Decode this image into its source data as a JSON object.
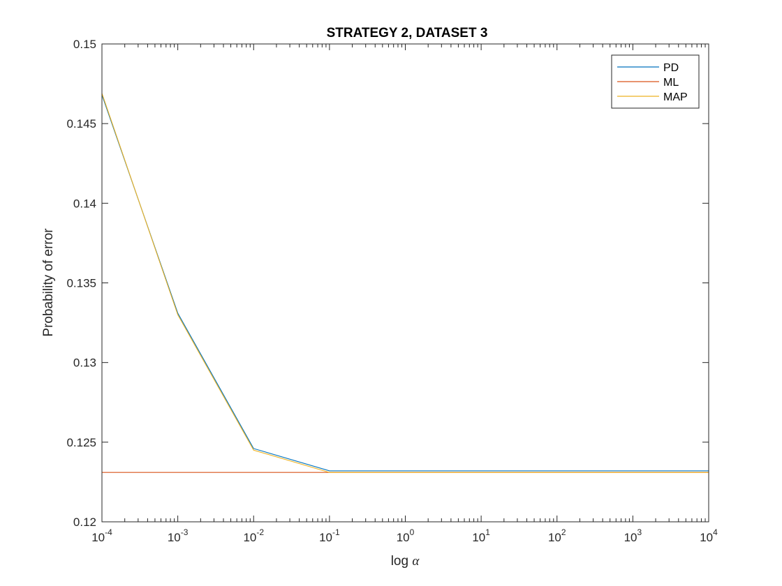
{
  "chart_data": {
    "type": "line",
    "title": "STRATEGY 2, DATASET 3",
    "xlabel_text": "log ",
    "xlabel_symbol": "α",
    "ylabel": "Probability of error",
    "xscale": "log",
    "xlim": [
      0.0001,
      10000
    ],
    "ylim": [
      0.12,
      0.15
    ],
    "x_ticks": [
      {
        "value": 0.0001,
        "base": "10",
        "exp": "-4"
      },
      {
        "value": 0.001,
        "base": "10",
        "exp": "-3"
      },
      {
        "value": 0.01,
        "base": "10",
        "exp": "-2"
      },
      {
        "value": 0.1,
        "base": "10",
        "exp": "-1"
      },
      {
        "value": 1,
        "base": "10",
        "exp": "0"
      },
      {
        "value": 10,
        "base": "10",
        "exp": "1"
      },
      {
        "value": 100,
        "base": "10",
        "exp": "2"
      },
      {
        "value": 1000,
        "base": "10",
        "exp": "3"
      },
      {
        "value": 10000,
        "base": "10",
        "exp": "4"
      }
    ],
    "y_ticks": [
      {
        "value": 0.12,
        "label": "0.12"
      },
      {
        "value": 0.125,
        "label": "0.125"
      },
      {
        "value": 0.13,
        "label": "0.13"
      },
      {
        "value": 0.135,
        "label": "0.135"
      },
      {
        "value": 0.14,
        "label": "0.14"
      },
      {
        "value": 0.145,
        "label": "0.145"
      },
      {
        "value": 0.15,
        "label": "0.15"
      }
    ],
    "x": [
      0.0001,
      0.001,
      0.01,
      0.1,
      1,
      10,
      100,
      1000,
      10000
    ],
    "series": [
      {
        "name": "PD",
        "color": "#0072BD",
        "values": [
          0.1468,
          0.1331,
          0.1246,
          0.1232,
          0.1232,
          0.1232,
          0.1232,
          0.1232,
          0.1232
        ]
      },
      {
        "name": "ML",
        "color": "#D95319",
        "values": [
          0.1231,
          0.1231,
          0.1231,
          0.1231,
          0.1231,
          0.1231,
          0.1231,
          0.1231,
          0.1231
        ]
      },
      {
        "name": "MAP",
        "color": "#EDB120",
        "values": [
          0.1469,
          0.133,
          0.1245,
          0.1231,
          0.1231,
          0.1231,
          0.1231,
          0.1231,
          0.1231
        ]
      }
    ],
    "grid": false,
    "legend_position": "top-right",
    "box": true
  }
}
